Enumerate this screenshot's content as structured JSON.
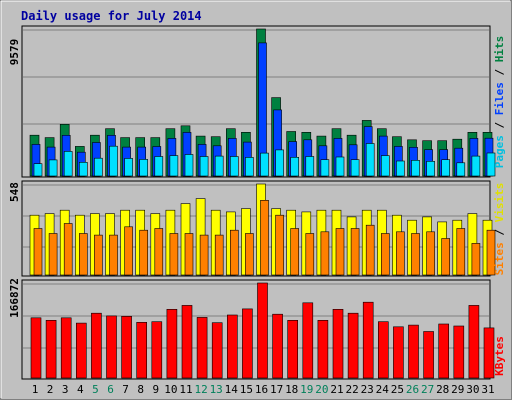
{
  "chart_data": {
    "type": "bar",
    "title": "Daily usage for July 2014",
    "days": [
      "1",
      "2",
      "3",
      "4",
      "5",
      "6",
      "7",
      "8",
      "9",
      "10",
      "11",
      "12",
      "13",
      "14",
      "15",
      "16",
      "17",
      "18",
      "19",
      "20",
      "21",
      "22",
      "23",
      "24",
      "25",
      "26",
      "27",
      "28",
      "29",
      "30",
      "31"
    ],
    "weekend_days": [
      "5",
      "6",
      "12",
      "13",
      "19",
      "20",
      "26",
      "27"
    ],
    "panels": [
      {
        "id": "hits",
        "max_label": "9579",
        "ylim": [
          0,
          9579
        ],
        "legend": [
          "Pages",
          "Files",
          "Hits"
        ],
        "series": [
          {
            "name": "Hits",
            "color": "#008040",
            "values": [
              2660,
              2500,
              3370,
              1930,
              2660,
              3080,
              2500,
              2500,
              2500,
              3080,
              3270,
              2600,
              2560,
              3080,
              2850,
              9579,
              5110,
              2900,
              2850,
              2600,
              3080,
              2660,
              3620,
              3080,
              2560,
              2360,
              2300,
              2300,
              2400,
              2850,
              2850
            ]
          },
          {
            "name": "Files",
            "color": "#0040ff",
            "values": [
              2060,
              1880,
              2650,
              1550,
              2180,
              2650,
              1880,
              1880,
              1920,
              2450,
              2840,
              2060,
              1970,
              2450,
              2210,
              8670,
              4310,
              2240,
              2360,
              1970,
              2450,
              2030,
              3220,
              2600,
              1930,
              1870,
              1720,
              1720,
              1810,
              2450,
              2460
            ]
          },
          {
            "name": "Pages",
            "color": "#00e0ff",
            "values": [
              800,
              1050,
              1600,
              890,
              1160,
              1940,
              1150,
              1080,
              1270,
              1330,
              1400,
              1270,
              1300,
              1270,
              1210,
              1490,
              1700,
              1220,
              1270,
              1060,
              1240,
              1060,
              2120,
              1330,
              980,
              1020,
              960,
              1060,
              860,
              1300,
              1500
            ]
          }
        ]
      },
      {
        "id": "visits",
        "max_label": "548",
        "ylim": [
          0,
          548
        ],
        "legend": [
          "Sites",
          "Visits"
        ],
        "series": [
          {
            "name": "Visits",
            "color": "#ffff00",
            "values": [
              360,
              370,
              390,
              360,
              370,
              370,
              390,
              390,
              370,
              390,
              430,
              460,
              390,
              380,
              400,
              548,
              400,
              390,
              380,
              390,
              390,
              350,
              390,
              390,
              360,
              330,
              350,
              320,
              330,
              370,
              330
            ]
          },
          {
            "name": "Sites",
            "color": "#ff8000",
            "values": [
              280,
              250,
              310,
              250,
              240,
              240,
              290,
              270,
              280,
              250,
              250,
              240,
              240,
              270,
              250,
              450,
              360,
              280,
              250,
              260,
              280,
              280,
              300,
              250,
              260,
              250,
              260,
              220,
              280,
              190,
              270
            ]
          }
        ]
      },
      {
        "id": "kbytes",
        "max_label": "166872",
        "ylim": [
          0,
          166872
        ],
        "legend": [
          "KBytes"
        ],
        "series": [
          {
            "name": "KBytes",
            "color": "#ff0000",
            "values": [
              105700,
              101400,
              105700,
              96400,
              113900,
              109100,
              108300,
              97900,
              98900,
              120700,
              127600,
              106500,
              97100,
              110600,
              121400,
              166872,
              112000,
              101400,
              132100,
              101400,
              120700,
              113900,
              133100,
              98900,
              89900,
              92900,
              81700,
              94900,
              91400,
              127600,
              88000
            ]
          }
        ]
      }
    ]
  }
}
